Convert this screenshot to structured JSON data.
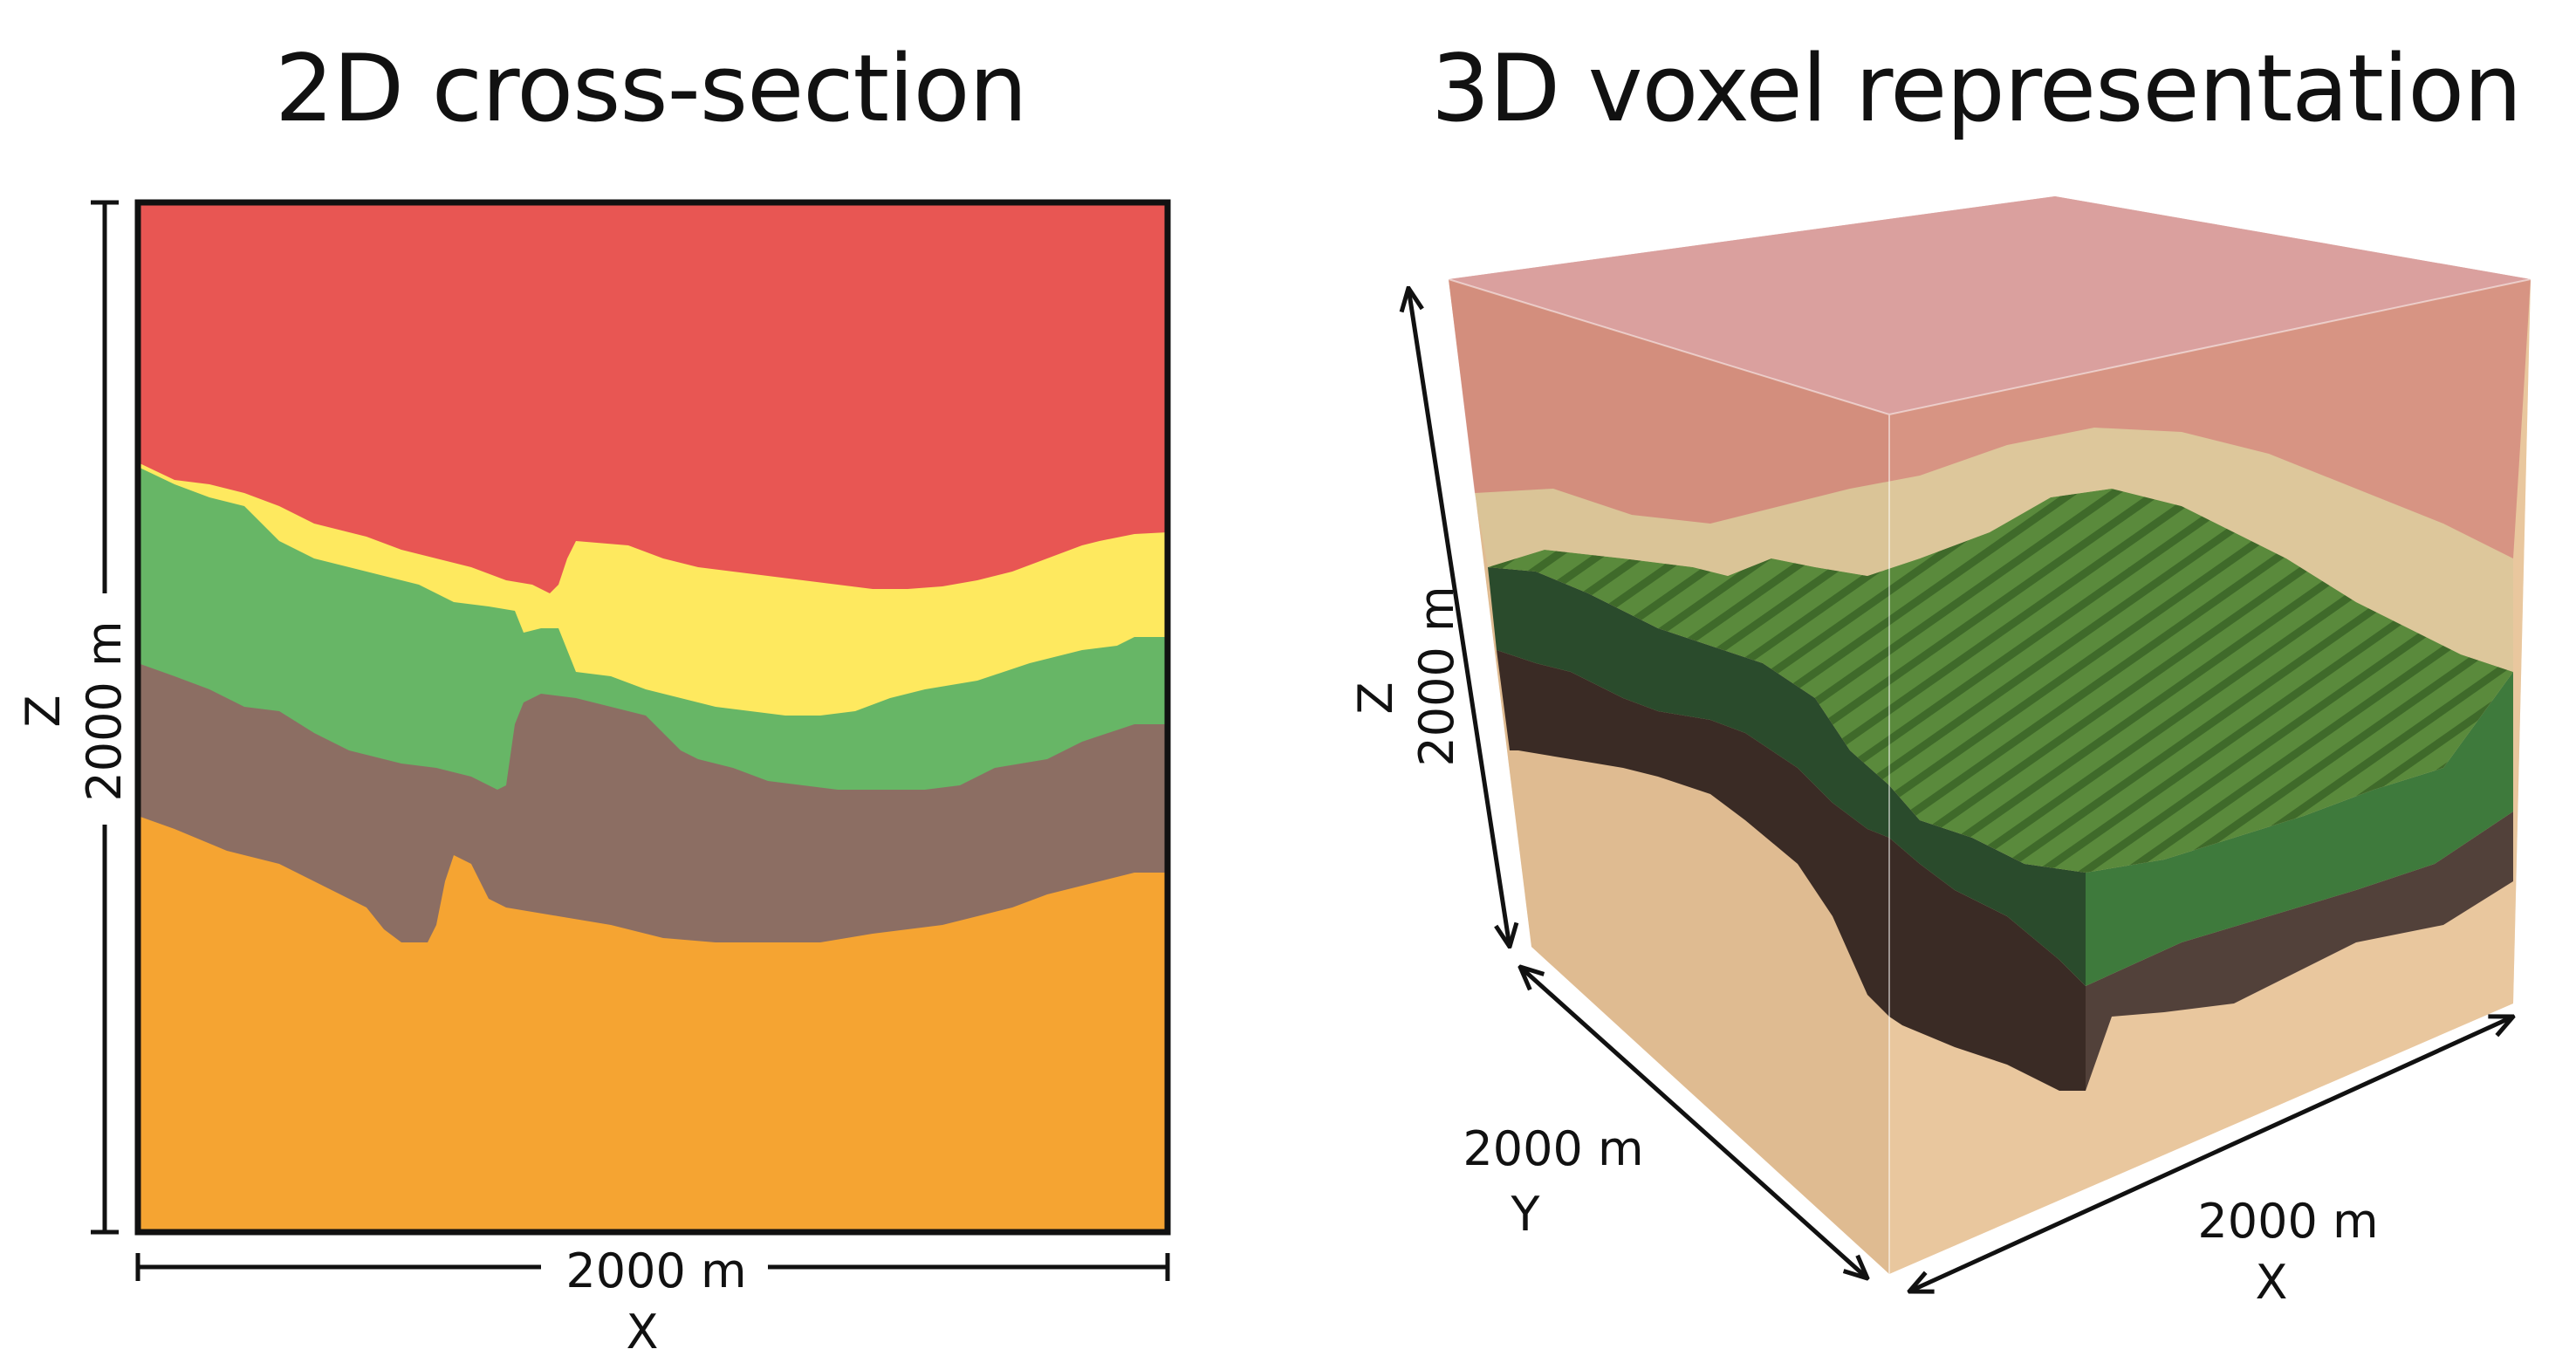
{
  "titles": {
    "left": "2D cross-section",
    "right": "3D voxel representation"
  },
  "left_panel": {
    "x_dim": "2000 m",
    "x_axis": "X",
    "z_dim": "2000 m",
    "z_axis": "Z"
  },
  "right_panel": {
    "z_dim": "2000 m",
    "z_axis": "Z",
    "y_dim": "2000 m",
    "y_axis": "Y",
    "x_dim": "2000 m",
    "x_axis": "X"
  },
  "layer_colors": {
    "red": "#e85653",
    "yellow": "#fee95f",
    "green": "#67b666",
    "brown": "#8c6e63",
    "orange": "#f5a432"
  }
}
